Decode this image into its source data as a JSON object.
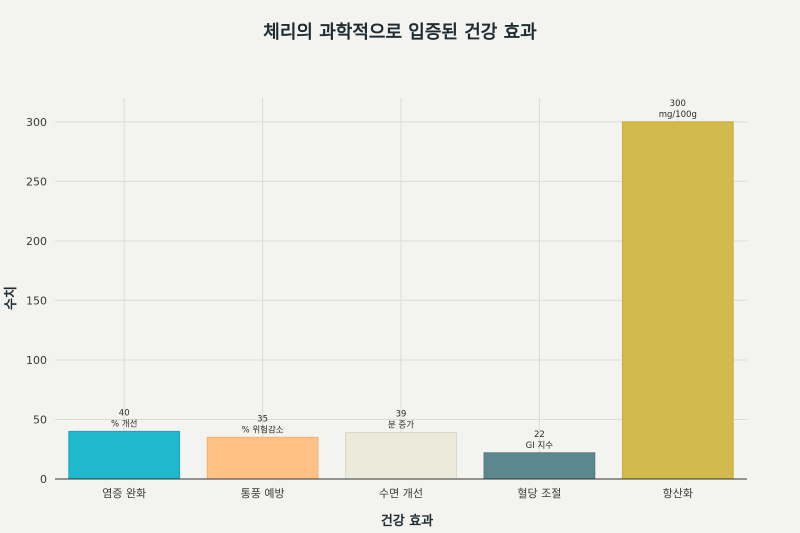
{
  "chart_data": {
    "type": "bar",
    "title": "체리의 과학적으로 입증된 건강 효과",
    "xlabel": "건강 효과",
    "ylabel": "수치",
    "categories": [
      "염증 완화",
      "통풍 예방",
      "수면 개선",
      "혈당 조절",
      "항산화"
    ],
    "values": [
      40,
      35,
      39,
      22,
      300
    ],
    "data_labels": [
      [
        "40",
        "% 개선"
      ],
      [
        "35",
        "% 위험감소"
      ],
      [
        "39",
        "분 증가"
      ],
      [
        "22",
        "GI 지수"
      ],
      [
        "300",
        "mg/100g"
      ]
    ],
    "colors": [
      "#1fb8cd",
      "#ffc185",
      "#eceadb",
      "#5d878f",
      "#d2ba4c"
    ],
    "bar_edge_colors": [
      "#1aa3b6",
      "#f5b070",
      "#d9d6c4",
      "#527980",
      "#c7ad3c"
    ],
    "ylim": [
      0,
      320
    ],
    "yticks": [
      0,
      50,
      100,
      150,
      200,
      250,
      300
    ],
    "grid": true
  }
}
